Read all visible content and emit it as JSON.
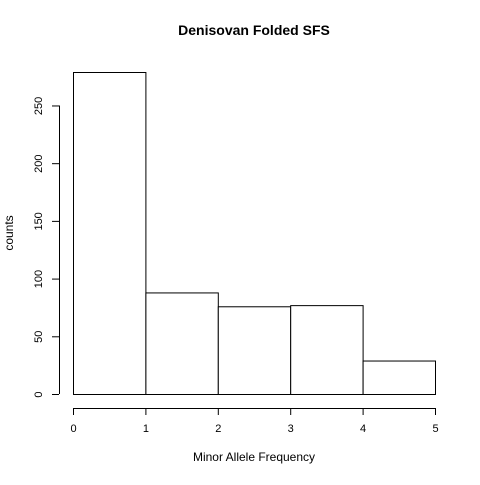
{
  "chart_data": {
    "type": "bar",
    "title": "Denisovan Folded SFS",
    "xlabel": "Minor Allele Frequency",
    "ylabel": "counts",
    "bins": [
      [
        0,
        1
      ],
      [
        1,
        2
      ],
      [
        2,
        3
      ],
      [
        3,
        4
      ],
      [
        4,
        5
      ]
    ],
    "values": [
      279,
      88,
      76,
      77,
      29
    ],
    "xlim": [
      0,
      5
    ],
    "ylim": [
      0,
      279
    ],
    "xticks": [
      0,
      1,
      2,
      3,
      4,
      5
    ],
    "yticks": [
      0,
      50,
      100,
      150,
      200,
      250
    ],
    "grid": false,
    "legend": "none",
    "colors": {
      "bar_fill": "#ffffff",
      "bar_stroke": "#000000",
      "axis": "#000000"
    }
  }
}
